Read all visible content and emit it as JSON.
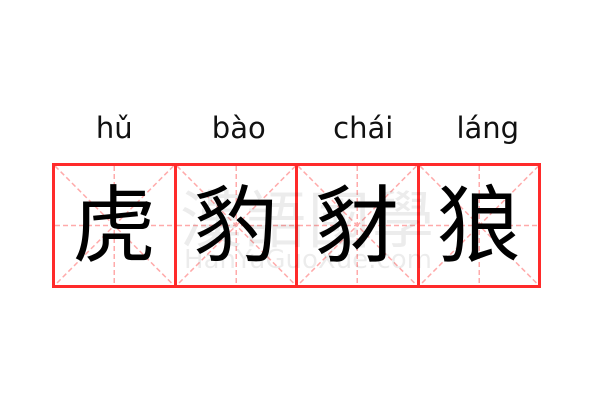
{
  "words": [
    {
      "pinyin": "hǔ",
      "hanzi": "虎"
    },
    {
      "pinyin": "bào",
      "hanzi": "豹"
    },
    {
      "pinyin": "chái",
      "hanzi": "豺"
    },
    {
      "pinyin": "láng",
      "hanzi": "狼"
    }
  ],
  "watermark": {
    "chinese": "漢語國學",
    "latin": "HanYuGuoXue.com"
  },
  "colors": {
    "grid_border": "#ff2a2a",
    "guide_lines": "#ffaaaa"
  }
}
